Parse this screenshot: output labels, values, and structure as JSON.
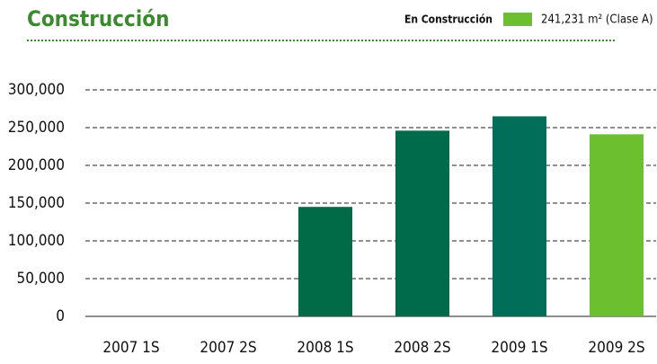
{
  "chart_data": {
    "type": "bar",
    "title": "Construcción",
    "legend": {
      "title": "En Construcción",
      "label": "241,231 m² (Clase A)",
      "color": "#6cbf2e"
    },
    "categories": [
      "2007 1S",
      "2007 2S",
      "2008 1S",
      "2008 2S",
      "2009 1S",
      "2009 2S"
    ],
    "values": [
      0,
      0,
      145000,
      246000,
      265000,
      241231
    ],
    "colors": [
      "#006b46",
      "#006b46",
      "#006b46",
      "#006b4a",
      "#006e58",
      "#6cbf2e"
    ],
    "ylim": [
      0,
      300000
    ],
    "yticks": [
      0,
      {
        "value": 50000,
        "label": "50,000"
      },
      {
        "value": 100000,
        "label": "100,000"
      },
      {
        "value": 150000,
        "label": "150,000"
      },
      {
        "value": 200000,
        "label": "200,000"
      },
      {
        "value": 250000,
        "label": "250,000"
      },
      {
        "value": 300000,
        "label": "300,000"
      }
    ],
    "grid": true
  }
}
